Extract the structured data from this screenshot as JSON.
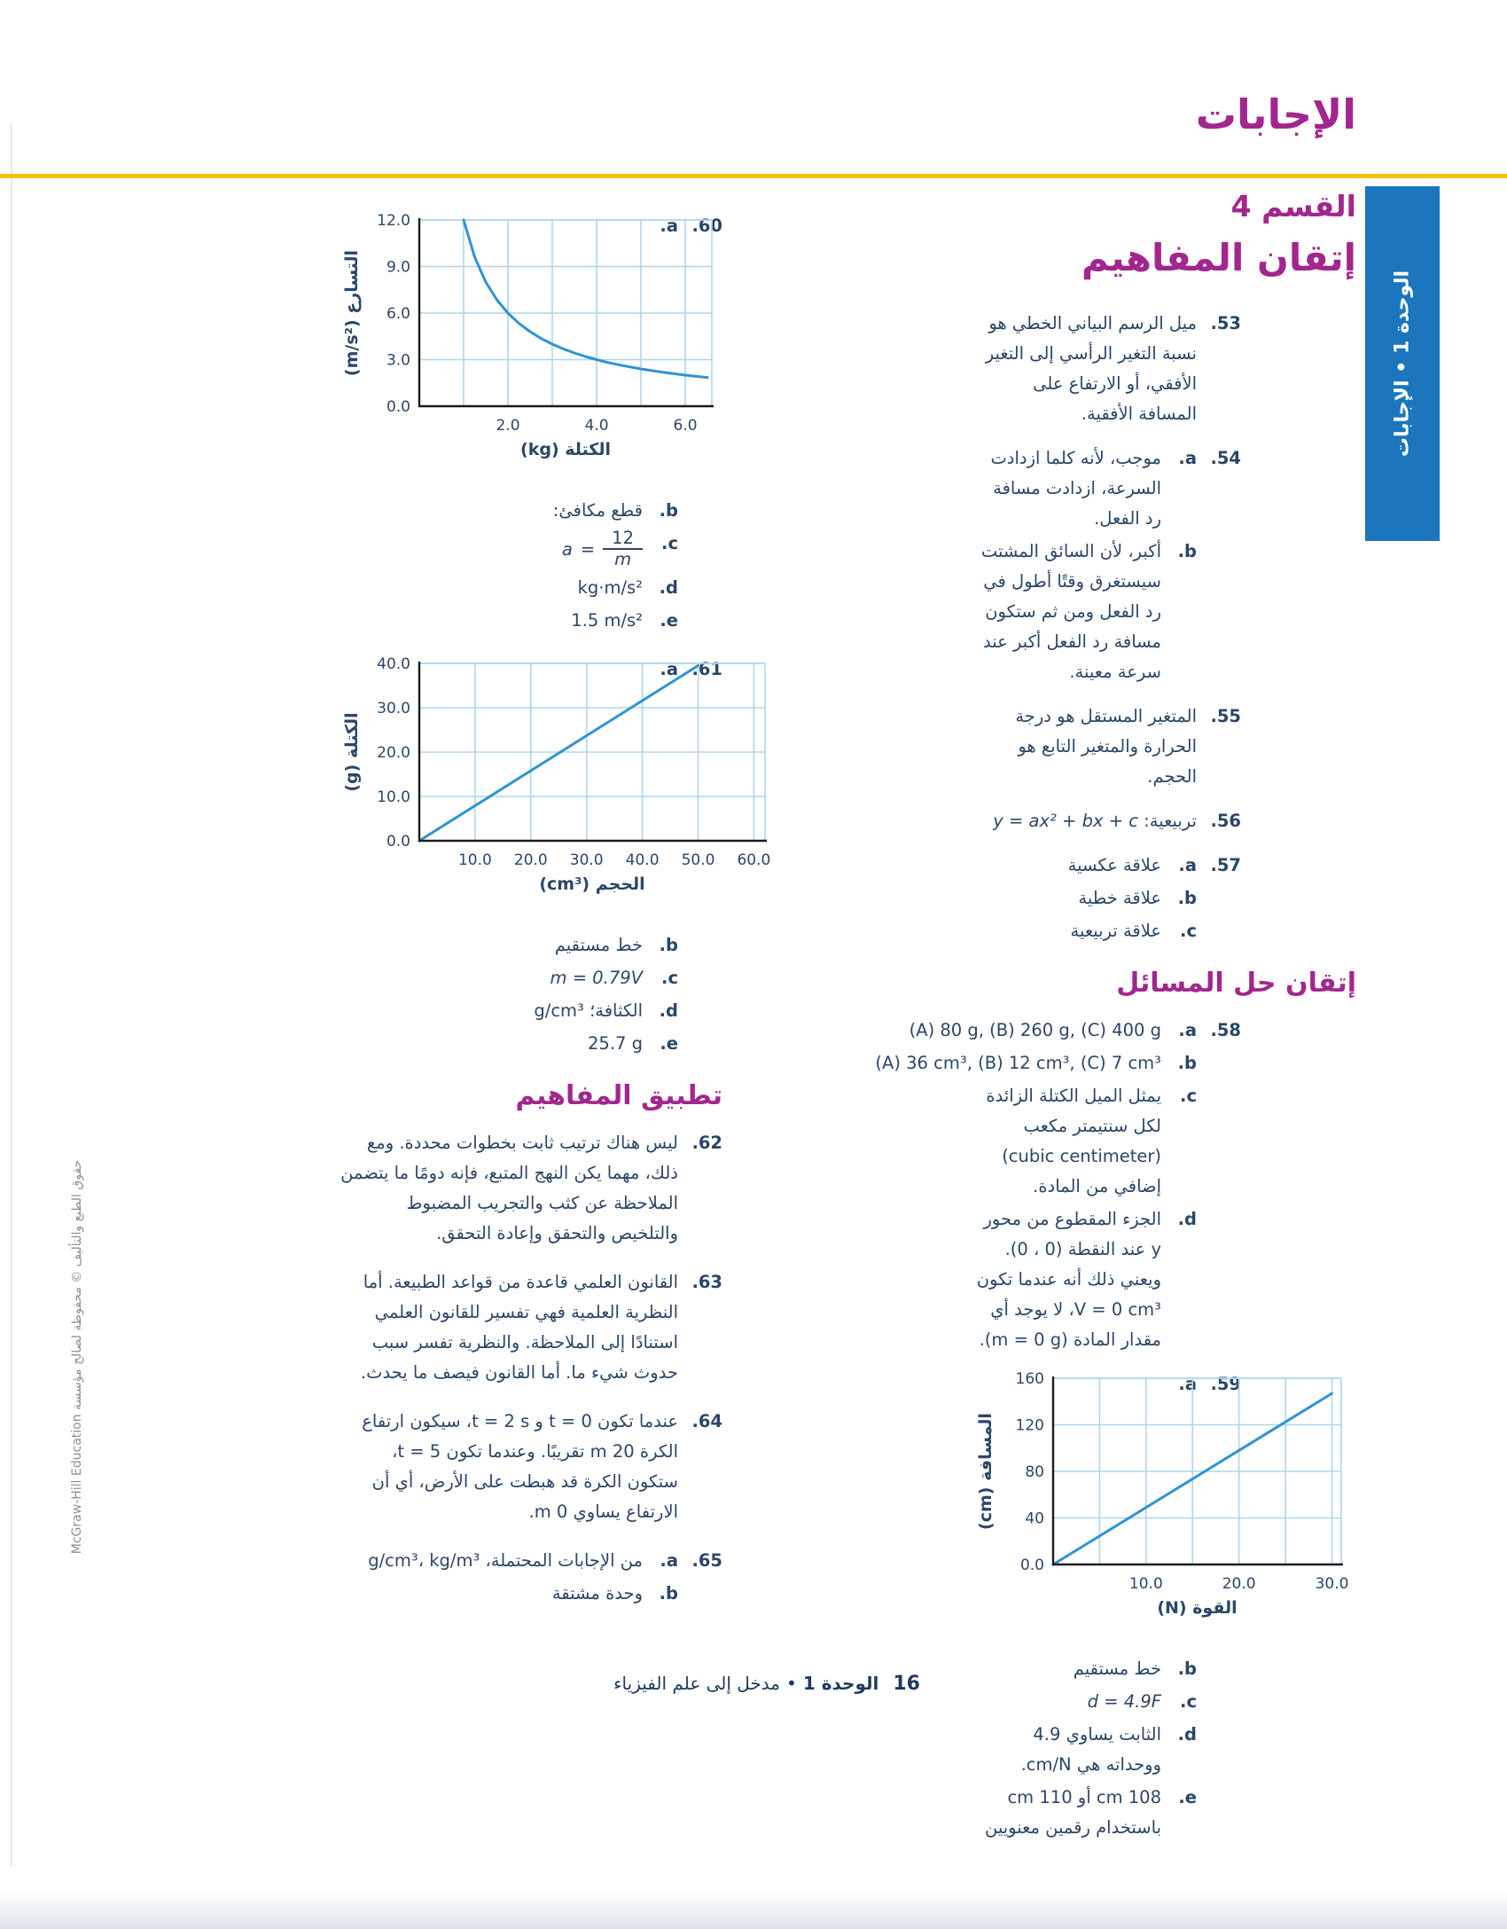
{
  "page": {
    "title": "الإجابات",
    "side_tab": "الوحدة 1 • الإجابات",
    "footer": {
      "page_number": "16",
      "unit_bold": "الوحدة 1",
      "separator": "•",
      "chapter": "مدخل إلى علم الفيزياء"
    },
    "copyright": "حقوق الطبع والتأليف © محفوظة لصالح مؤسسة McGraw-Hill Education",
    "colors": {
      "accent_magenta": "#a2268e",
      "body_blue": "#2b4668",
      "tab_blue": "#1b76bd",
      "rule_yellow": "#f3c50a",
      "chart_line": "#2e93d3",
      "chart_grid": "#b0d5ec",
      "axis_black": "#1b1b1b"
    }
  },
  "columns": [
    {
      "id": "right",
      "blocks": [
        {
          "type": "section",
          "name": "section-4-title",
          "text": "القسم 4"
        },
        {
          "type": "heading1",
          "name": "mastering-concepts-heading",
          "text": "إتقان المفاهيم"
        },
        {
          "type": "item",
          "num": "53.",
          "parts": [
            {
              "text": "ميل الرسم البياني الخطي هو نسبة التغير الرأسي إلى التغير الأفقي، أو الارتفاع على المسافة الأفقية."
            }
          ]
        },
        {
          "type": "item",
          "num": "54.",
          "parts": [
            {
              "label": "a.",
              "text": "موجب، لأنه كلما ازدادت السرعة، ازدادت مسافة رد الفعل."
            },
            {
              "label": "b.",
              "text": "أكبر، لأن السائق المشتت سيستغرق وقتًا أطول في رد الفعل ومن ثم ستكون مسافة رد الفعل أكبر عند سرعة معينة."
            }
          ]
        },
        {
          "type": "item",
          "num": "55.",
          "parts": [
            {
              "text": "المتغير المستقل هو درجة الحرارة والمتغير التابع هو الحجم."
            }
          ]
        },
        {
          "type": "item",
          "num": "56.",
          "parts": [
            {
              "text": "تربيعية:",
              "math": "y = ax² + bx + c"
            }
          ]
        },
        {
          "type": "item",
          "num": "57.",
          "parts": [
            {
              "label": "a.",
              "text": "علاقة عكسية"
            },
            {
              "label": "b.",
              "text": "علاقة خطية"
            },
            {
              "label": "c.",
              "text": "علاقة تربيعية"
            }
          ]
        },
        {
          "type": "heading2",
          "name": "mastering-problems-heading",
          "text": "إتقان حل المسائل"
        },
        {
          "type": "item",
          "num": "58.",
          "parts": [
            {
              "label": "a.",
              "latin": "(A) 80 g, (B) 260 g, (C) 400 g"
            },
            {
              "label": "b.",
              "latin": "(A) 36 cm³, (B) 12 cm³, (C) 7 cm³"
            },
            {
              "label": "c.",
              "text": "يمثل الميل الكتلة الزائدة لكل سنتيمتر مكعب (cubic centimeter) إضافي من المادة."
            },
            {
              "label": "d.",
              "text": "الجزء المقطوع من محور y عند النقطة (0 ، 0). ويعني ذلك أنه عندما تكون V = 0 cm³، لا يوجد أي مقدار المادة (m = 0 g)."
            }
          ]
        },
        {
          "type": "item",
          "num": "59.",
          "parts": [
            {
              "label": "a.",
              "chart": "force_distance"
            },
            {
              "label": "b.",
              "text": "خط مستقيم"
            },
            {
              "label": "c.",
              "math": "d = 4.9F"
            },
            {
              "label": "d.",
              "text": "الثابت يساوي 4.9 ووحداته هي cm/N."
            },
            {
              "label": "e.",
              "text": "108 cm أو 110 cm باستخدام رقمين معنويين"
            }
          ]
        }
      ]
    },
    {
      "id": "left",
      "blocks": [
        {
          "type": "item",
          "num": "60.",
          "parts": [
            {
              "label": "a.",
              "chart": "mass_acceleration"
            },
            {
              "label": "b.",
              "text": "قطع مكافئ:"
            },
            {
              "label": "c.",
              "frac": {
                "pre": "a",
                "eq": "=",
                "num": "12",
                "den": "m"
              }
            },
            {
              "label": "d.",
              "latin": "kg·m/s²"
            },
            {
              "label": "e.",
              "latin": "1.5 m/s²"
            }
          ]
        },
        {
          "type": "item",
          "num": "61.",
          "parts": [
            {
              "label": "a.",
              "chart": "volume_mass"
            },
            {
              "label": "b.",
              "text": "خط مستقيم"
            },
            {
              "label": "c.",
              "math": "m = 0.79V"
            },
            {
              "label": "d.",
              "text": "الكثافة؛",
              "latin": "g/cm³"
            },
            {
              "label": "e.",
              "latin": "25.7 g"
            }
          ]
        },
        {
          "type": "heading2",
          "name": "applying-concepts-heading",
          "text": "تطبيق المفاهيم"
        },
        {
          "type": "item",
          "num": "62.",
          "parts": [
            {
              "text": "ليس هناك ترتيب ثابت بخطوات محددة. ومع ذلك، مهما يكن النهج المتبع، فإنه دومًا ما يتضمن الملاحظة عن كثب والتجريب المضبوط والتلخيص والتحقق وإعادة التحقق."
            }
          ]
        },
        {
          "type": "item",
          "num": "63.",
          "parts": [
            {
              "text": "القانون العلمي قاعدة من قواعد الطبيعة. أما النظرية العلمية فهي تفسير للقانون العلمي استنادًا إلى الملاحظة. والنظرية تفسر سبب حدوث شيء ما. أما القانون فيصف ما يحدث."
            }
          ]
        },
        {
          "type": "item",
          "num": "64.",
          "parts": [
            {
              "text": "عندما تكون t = 0 و t = 2 s، سيكون ارتفاع الكرة 20 m تقريبًا. وعندما تكون t = 5، ستكون الكرة قد هبطت على الأرض، أي أن الارتفاع يساوي 0 m."
            }
          ]
        },
        {
          "type": "item",
          "num": "65.",
          "parts": [
            {
              "label": "a.",
              "text": "من الإجابات المحتملة، g/cm³، kg/m³"
            },
            {
              "label": "b.",
              "text": "وحدة مشتقة"
            }
          ]
        }
      ]
    }
  ],
  "chart_data": [
    {
      "id": "mass_acceleration",
      "answer": "60.a",
      "type": "line",
      "title": "",
      "xlabel": "الكتلة (kg)",
      "ylabel": "التسارع (m/s²)",
      "equation": "a = 12/m",
      "xlim": [
        0,
        6.6
      ],
      "ylim": [
        0,
        12
      ],
      "xticks": [
        [
          2,
          "2.0"
        ],
        [
          4,
          "4.0"
        ],
        [
          6,
          "6.0"
        ]
      ],
      "yticks": [
        [
          0,
          "0.0"
        ],
        [
          3,
          "3.0"
        ],
        [
          6,
          "6.0"
        ],
        [
          9,
          "9.0"
        ],
        [
          12,
          "12.0"
        ]
      ],
      "xgrid": [
        1,
        2,
        3,
        4,
        5,
        6
      ],
      "ygrid": [
        3,
        6,
        9,
        12
      ],
      "grid": true,
      "legend": false,
      "plot_size": [
        330,
        210
      ],
      "points": [
        [
          1,
          12
        ],
        [
          1.25,
          9.6
        ],
        [
          1.5,
          8
        ],
        [
          1.75,
          6.86
        ],
        [
          2,
          6
        ],
        [
          2.25,
          5.33
        ],
        [
          2.5,
          4.8
        ],
        [
          2.75,
          4.36
        ],
        [
          3,
          4
        ],
        [
          3.25,
          3.69
        ],
        [
          3.5,
          3.43
        ],
        [
          3.75,
          3.2
        ],
        [
          4,
          3
        ],
        [
          4.25,
          2.82
        ],
        [
          4.5,
          2.67
        ],
        [
          4.75,
          2.53
        ],
        [
          5,
          2.4
        ],
        [
          5.25,
          2.29
        ],
        [
          5.5,
          2.18
        ],
        [
          5.75,
          2.09
        ],
        [
          6,
          2
        ],
        [
          6.25,
          1.92
        ],
        [
          6.5,
          1.85
        ]
      ]
    },
    {
      "id": "volume_mass",
      "answer": "61.a",
      "type": "line",
      "title": "",
      "xlabel": "الحجم (cm³)",
      "ylabel": "الكتلة (g)",
      "equation": "m = 0.79V",
      "xlim": [
        0,
        62
      ],
      "ylim": [
        0,
        40
      ],
      "xticks": [
        [
          10,
          "10.0"
        ],
        [
          20,
          "20.0"
        ],
        [
          30,
          "30.0"
        ],
        [
          40,
          "40.0"
        ],
        [
          50,
          "50.0"
        ],
        [
          60,
          "60.0"
        ]
      ],
      "yticks": [
        [
          0,
          "0.0"
        ],
        [
          10,
          "10.0"
        ],
        [
          20,
          "20.0"
        ],
        [
          30,
          "30.0"
        ],
        [
          40,
          "40.0"
        ]
      ],
      "xgrid": [
        10,
        20,
        30,
        40,
        50,
        60
      ],
      "ygrid": [
        10,
        20,
        30,
        40
      ],
      "grid": true,
      "legend": false,
      "plot_size": [
        390,
        200
      ],
      "points": [
        [
          0,
          0
        ],
        [
          50,
          39.5
        ]
      ]
    },
    {
      "id": "force_distance",
      "answer": "59.a",
      "type": "line",
      "title": "",
      "xlabel": "القوة (N)",
      "ylabel": "المسافة (cm)",
      "equation": "d = 4.9F",
      "xlim": [
        0,
        31
      ],
      "ylim": [
        0,
        160
      ],
      "xticks": [
        [
          10,
          "10.0"
        ],
        [
          20,
          "20.0"
        ],
        [
          30,
          "30.0"
        ]
      ],
      "yticks": [
        [
          0,
          "0.0"
        ],
        [
          40,
          "40"
        ],
        [
          80,
          "80"
        ],
        [
          120,
          "120"
        ],
        [
          160,
          "160"
        ]
      ],
      "xgrid": [
        5,
        10,
        15,
        20,
        25,
        30
      ],
      "ygrid": [
        40,
        80,
        120,
        160
      ],
      "grid": true,
      "legend": false,
      "plot_size": [
        325,
        210
      ],
      "points": [
        [
          0,
          0
        ],
        [
          30,
          147
        ]
      ]
    }
  ]
}
